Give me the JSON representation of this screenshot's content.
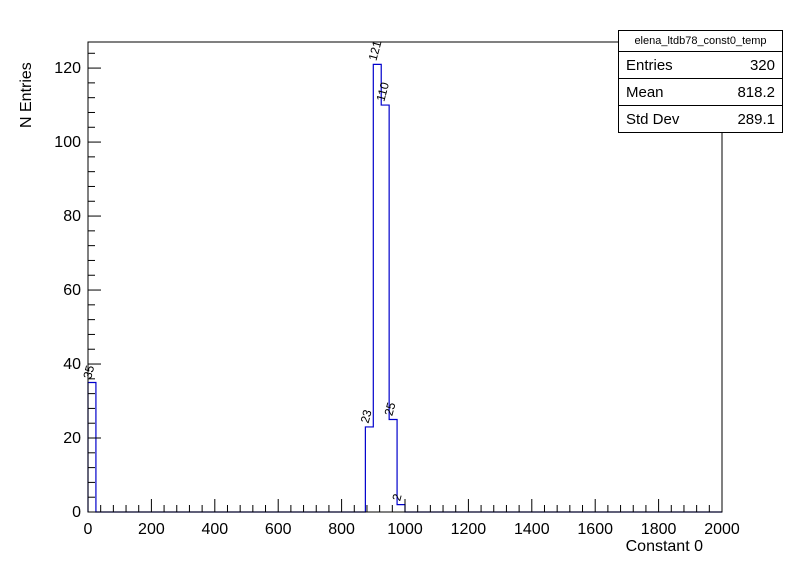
{
  "stats_box": {
    "title": "elena_ltdb78_const0_temp",
    "rows": [
      {
        "label": "Entries",
        "value": "320"
      },
      {
        "label": "Mean",
        "value": "818.2"
      },
      {
        "label": "Std Dev",
        "value": "289.1"
      }
    ]
  },
  "chart_data": {
    "type": "bar",
    "title": "elena_ltdb78_const0_temp",
    "xlabel": "Constant 0",
    "ylabel": "N Entries",
    "xlim": [
      0,
      2000
    ],
    "ylim": [
      0,
      127.05
    ],
    "x_ticks": [
      0,
      200,
      400,
      600,
      800,
      1000,
      1200,
      1400,
      1600,
      1800,
      2000
    ],
    "y_ticks": [
      0,
      20,
      40,
      60,
      80,
      100,
      120
    ],
    "x_minor_step": 40,
    "y_minor_step": 4,
    "bin_width": 25,
    "bins": [
      {
        "x_low": 0,
        "count": 35
      },
      {
        "x_low": 875,
        "count": 23
      },
      {
        "x_low": 900,
        "count": 121
      },
      {
        "x_low": 925,
        "count": 110
      },
      {
        "x_low": 950,
        "count": 25
      },
      {
        "x_low": 975,
        "count": 2
      }
    ],
    "line_color": "#0000cc",
    "axis_color": "#000000",
    "grid": false,
    "legend_position": "none",
    "bin_label_angle": -75
  }
}
